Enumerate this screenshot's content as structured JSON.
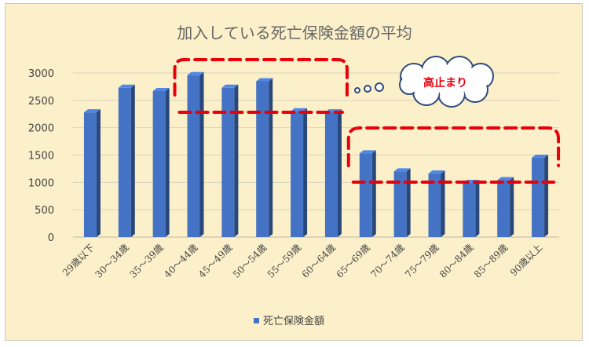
{
  "chart_data": {
    "type": "bar",
    "title": "加入している死亡保険金額の平均",
    "categories": [
      "29歳以下",
      "30～34歳",
      "35～39歳",
      "40～44歳",
      "45～49歳",
      "50～54歳",
      "55～59歳",
      "60～64歳",
      "65～69歳",
      "70～74歳",
      "75～79歳",
      "80～84歳",
      "85～89歳",
      "90歳以上"
    ],
    "series": [
      {
        "name": "死亡保険金額",
        "values": [
          2280,
          2730,
          2670,
          2960,
          2730,
          2850,
          2300,
          2280,
          1530,
          1200,
          1160,
          990,
          1040,
          1450
        ],
        "color": "#4472c4"
      }
    ],
    "ylim": [
      0,
      3000
    ],
    "yticks": [
      0,
      500,
      1000,
      1500,
      2000,
      2500,
      3000
    ],
    "xlabel": "",
    "ylabel": "",
    "grid": true,
    "legend_position": "bottom",
    "annotations": [
      {
        "text": "高止まり",
        "shape": "cloud-callout",
        "color": "#e8000b"
      }
    ],
    "highlight_color": "#e8000b"
  }
}
